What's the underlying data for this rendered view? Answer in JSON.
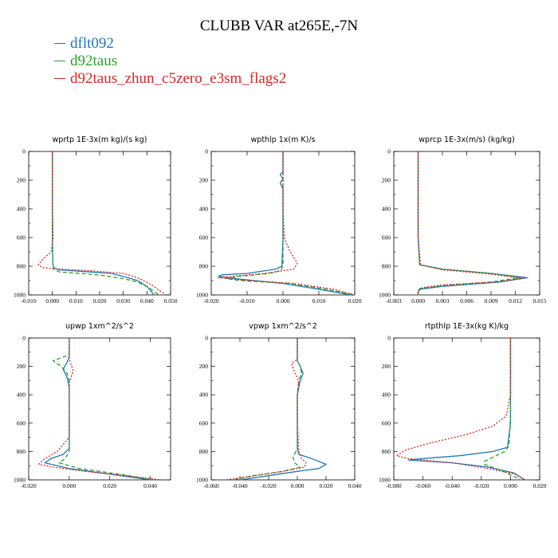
{
  "page_title": "CLUBB VAR at265E,-7N",
  "legend": [
    {
      "name": "dflt092",
      "color": "#1f77b4",
      "dash": "solid"
    },
    {
      "name": "d92taus",
      "color": "#2ca02c",
      "dash": "dashed"
    },
    {
      "name": "d92taus_zhun_c5zero_e3sm_flags2",
      "color": "#d62728",
      "dash": "dotted"
    }
  ],
  "chart_data": [
    {
      "type": "line",
      "title": "wprtp  1E-3x(m kg)/(s kg)",
      "xlim": [
        -0.01,
        0.05
      ],
      "ylim": [
        1000,
        0
      ],
      "xticks": [
        "-0.010",
        "0.000",
        "0.010",
        "0.020",
        "0.030",
        "0.040",
        "0.050"
      ],
      "yticks": [
        "0",
        "200",
        "400",
        "600",
        "800",
        "1000"
      ],
      "series": [
        {
          "x": [
            0,
            0,
            0,
            0,
            0.0002,
            0.0005,
            0.003,
            0.012,
            0.025,
            0.032,
            0.036,
            0.04,
            0.043
          ],
          "y": [
            0,
            200,
            400,
            600,
            780,
            810,
            825,
            835,
            850,
            880,
            900,
            940,
            1000
          ]
        },
        {
          "x": [
            0,
            0,
            0,
            0,
            0.0002,
            0.0005,
            0.003,
            0.012,
            0.022,
            0.031,
            0.036,
            0.041,
            0.045
          ],
          "y": [
            0,
            200,
            400,
            600,
            780,
            820,
            840,
            850,
            865,
            890,
            910,
            950,
            1000
          ]
        },
        {
          "x": [
            0,
            0,
            0,
            0.0003,
            -0.0005,
            -0.004,
            -0.006,
            -0.004,
            0.003,
            0.015,
            0.03,
            0.036,
            0.042,
            0.048
          ],
          "y": [
            0,
            200,
            400,
            600,
            700,
            750,
            790,
            810,
            820,
            830,
            850,
            880,
            930,
            1000
          ]
        }
      ]
    },
    {
      "type": "line",
      "title": "wpthlp  1x(m K)/s",
      "xlim": [
        -0.02,
        0.02
      ],
      "ylim": [
        1000,
        0
      ],
      "xticks": [
        "-0.020",
        "-0.010",
        "0.000",
        "0.010",
        "0.020"
      ],
      "yticks": [
        "0",
        "200",
        "400",
        "600",
        "800",
        "1000"
      ],
      "series": [
        {
          "x": [
            0,
            0,
            -0.0008,
            0,
            -0.0008,
            0,
            0,
            0,
            -0.0003,
            -0.002,
            -0.01,
            -0.017,
            -0.018,
            -0.012,
            0,
            0.01,
            0.019
          ],
          "y": [
            0,
            140,
            160,
            190,
            220,
            260,
            400,
            600,
            800,
            820,
            850,
            860,
            870,
            890,
            920,
            960,
            1000
          ]
        },
        {
          "x": [
            0,
            0,
            0,
            0,
            0,
            0,
            -0.0005,
            -0.004,
            -0.012,
            -0.016,
            -0.012,
            0.002,
            0.012,
            0.02
          ],
          "y": [
            0,
            150,
            220,
            300,
            600,
            790,
            830,
            850,
            870,
            885,
            900,
            920,
            960,
            1000
          ]
        },
        {
          "x": [
            0,
            0,
            0,
            0.0003,
            0.002,
            0.004,
            0.003,
            -0.005,
            -0.014,
            -0.018,
            -0.012,
            0.003,
            0.014,
            0.02
          ],
          "y": [
            0,
            200,
            400,
            600,
            700,
            780,
            820,
            850,
            870,
            880,
            895,
            920,
            960,
            1000
          ]
        }
      ]
    },
    {
      "type": "line",
      "title": "wprcp  1E-3x(m/s) (kg/kg)",
      "xlim": [
        -0.003,
        0.015
      ],
      "ylim": [
        1000,
        0
      ],
      "xticks": [
        "-0.003",
        "0.000",
        "0.003",
        "0.006",
        "0.009",
        "0.012",
        "0.015"
      ],
      "yticks": [
        "0",
        "200",
        "400",
        "600",
        "800",
        "1000"
      ],
      "series": [
        {
          "x": [
            0,
            0,
            0,
            0,
            0.0002,
            0.003,
            0.009,
            0.0135,
            0.01,
            0.003,
            0.0002,
            0,
            0
          ],
          "y": [
            0,
            200,
            400,
            600,
            790,
            820,
            850,
            880,
            910,
            940,
            960,
            980,
            1000
          ]
        },
        {
          "x": [
            0,
            0,
            0,
            0,
            0.0002,
            0.003,
            0.009,
            0.0125,
            0.009,
            0.003,
            0.0002,
            0,
            0
          ],
          "y": [
            0,
            200,
            400,
            600,
            790,
            820,
            850,
            880,
            910,
            935,
            955,
            975,
            1000
          ]
        },
        {
          "x": [
            0,
            0,
            0,
            0,
            0.0003,
            0.003,
            0.009,
            0.013,
            0.0095,
            0.003,
            0.0005,
            0,
            0
          ],
          "y": [
            0,
            200,
            400,
            600,
            790,
            825,
            855,
            885,
            910,
            930,
            950,
            975,
            1000
          ]
        }
      ]
    },
    {
      "type": "line",
      "title": "upwp  1xm^2/s^2",
      "xlim": [
        -0.02,
        0.05
      ],
      "ylim": [
        1000,
        0
      ],
      "xticks": [
        "-0.020",
        "0.000",
        "0.020",
        "0.040"
      ],
      "yticks": [
        "0",
        "200",
        "400",
        "600",
        "800",
        "1000"
      ],
      "series": [
        {
          "x": [
            0,
            0,
            0,
            -0.001,
            -0.003,
            -0.001,
            0,
            0,
            0,
            -0.003,
            -0.009,
            -0.012,
            0,
            0.02,
            0.04
          ],
          "y": [
            0,
            110,
            130,
            170,
            220,
            280,
            350,
            500,
            780,
            820,
            850,
            880,
            920,
            960,
            1000
          ]
        },
        {
          "x": [
            0,
            0,
            -0.002,
            -0.008,
            -0.004,
            -0.001,
            0,
            0,
            0,
            0,
            -0.002,
            -0.005,
            0.005,
            0.025,
            0.042
          ],
          "y": [
            0,
            110,
            130,
            160,
            200,
            250,
            300,
            500,
            750,
            800,
            850,
            880,
            920,
            960,
            1000
          ]
        },
        {
          "x": [
            0,
            0,
            0.001,
            0.002,
            0.001,
            0,
            0,
            0,
            -0.006,
            -0.013,
            -0.015,
            -0.008,
            0.008,
            0.028,
            0.045
          ],
          "y": [
            0,
            150,
            190,
            230,
            270,
            320,
            500,
            700,
            800,
            860,
            890,
            910,
            940,
            970,
            1000
          ]
        }
      ]
    },
    {
      "type": "line",
      "title": "vpwp  1xm^2/s^2",
      "xlim": [
        -0.06,
        0.04
      ],
      "ylim": [
        1000,
        0
      ],
      "xticks": [
        "-0.060",
        "-0.040",
        "-0.020",
        "0.000",
        "0.020",
        "0.040"
      ],
      "yticks": [
        "0",
        "200",
        "400",
        "600",
        "800",
        "1000"
      ],
      "series": [
        {
          "x": [
            0,
            0,
            0.002,
            0.004,
            0.002,
            0,
            0,
            0,
            0.001,
            0.01,
            0.02,
            0.015,
            0,
            -0.02,
            -0.04
          ],
          "y": [
            0,
            160,
            200,
            250,
            300,
            400,
            600,
            780,
            820,
            850,
            890,
            920,
            940,
            970,
            1000
          ]
        },
        {
          "x": [
            0,
            0,
            0.002,
            0.003,
            0.001,
            0,
            0,
            0,
            -0.003,
            -0.002,
            0.002,
            -0.01,
            -0.03,
            -0.045
          ],
          "y": [
            0,
            160,
            200,
            250,
            300,
            400,
            600,
            780,
            840,
            880,
            910,
            940,
            970,
            1000
          ]
        },
        {
          "x": [
            0,
            0,
            -0.004,
            -0.002,
            0.001,
            0,
            0,
            0.001,
            0.003,
            0.006,
            0.005,
            -0.01,
            -0.03,
            -0.05
          ],
          "y": [
            0,
            150,
            180,
            240,
            300,
            400,
            600,
            800,
            850,
            880,
            910,
            940,
            970,
            1000
          ]
        }
      ]
    },
    {
      "type": "line",
      "title": "rtpthlp  1E-3x(kg K)/kg",
      "xlim": [
        -0.08,
        0.02
      ],
      "ylim": [
        1000,
        0
      ],
      "xticks": [
        "-0.080",
        "-0.060",
        "-0.040",
        "-0.020",
        "0.000",
        "0.020"
      ],
      "yticks": [
        "0",
        "200",
        "400",
        "600",
        "800",
        "1000"
      ],
      "series": [
        {
          "x": [
            0,
            0,
            0,
            0,
            -0.002,
            -0.012,
            -0.035,
            -0.06,
            -0.07,
            -0.04,
            -0.015,
            0.002,
            0.01
          ],
          "y": [
            0,
            200,
            400,
            600,
            770,
            800,
            830,
            850,
            860,
            880,
            910,
            950,
            1000
          ]
        },
        {
          "x": [
            0,
            0,
            0,
            0,
            -0.001,
            -0.004,
            -0.012,
            -0.018,
            -0.018,
            -0.005,
            0.007
          ],
          "y": [
            0,
            200,
            400,
            550,
            760,
            800,
            840,
            870,
            890,
            940,
            1000
          ]
        },
        {
          "x": [
            0,
            0,
            0,
            -0.003,
            -0.012,
            -0.03,
            -0.055,
            -0.072,
            -0.078,
            -0.07,
            -0.04,
            -0.015,
            0.003,
            0.01
          ],
          "y": [
            0,
            200,
            400,
            550,
            620,
            680,
            740,
            790,
            830,
            850,
            880,
            920,
            960,
            1000
          ]
        }
      ]
    }
  ]
}
